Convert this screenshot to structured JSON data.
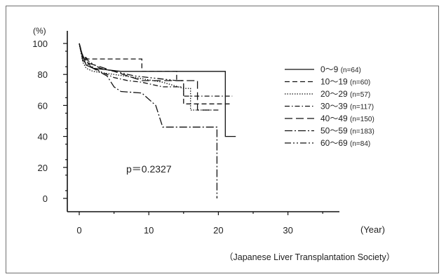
{
  "chart_data": {
    "type": "line",
    "title": "",
    "ylabel": "(%)",
    "xlabel": "(Year)",
    "xlim": [
      0,
      36
    ],
    "ylim": [
      0,
      105
    ],
    "xticks": [
      0,
      10,
      20,
      30
    ],
    "yticks": [
      0,
      20,
      40,
      60,
      80,
      100
    ],
    "grid": false,
    "legend_position": "right",
    "annotation": "p＝0.2327",
    "source": "（Japanese Liver Transplantation Society）",
    "series": [
      {
        "name": "0〜9",
        "n": "(n=64)",
        "dash": "",
        "points": [
          [
            0,
            100
          ],
          [
            0.3,
            94
          ],
          [
            1,
            86
          ],
          [
            2,
            84
          ],
          [
            6,
            82
          ],
          [
            21,
            82
          ],
          [
            21,
            40
          ],
          [
            22.5,
            40
          ]
        ]
      },
      {
        "name": "10〜19",
        "n": "(n=60)",
        "dash": "7,4",
        "points": [
          [
            0,
            100
          ],
          [
            0.4,
            93
          ],
          [
            1.2,
            90
          ],
          [
            9,
            90
          ],
          [
            9,
            82
          ],
          [
            14,
            82
          ],
          [
            14,
            76
          ],
          [
            15,
            76
          ],
          [
            15,
            61
          ],
          [
            22,
            61
          ]
        ]
      },
      {
        "name": "20〜29",
        "n": "(n=57)",
        "dash": "1.5,2",
        "points": [
          [
            0,
            100
          ],
          [
            0.5,
            88
          ],
          [
            1,
            84
          ],
          [
            2,
            82
          ],
          [
            5,
            80
          ],
          [
            8,
            78
          ],
          [
            12,
            75
          ],
          [
            15,
            71
          ],
          [
            16,
            71
          ],
          [
            16,
            57
          ],
          [
            19,
            57
          ]
        ]
      },
      {
        "name": "30〜39",
        "n": "(n=117)",
        "dash": "7,3,1.5,3",
        "points": [
          [
            0,
            100
          ],
          [
            0.5,
            92
          ],
          [
            1.5,
            86
          ],
          [
            3,
            82
          ],
          [
            5,
            78
          ],
          [
            7,
            76
          ],
          [
            9,
            75
          ],
          [
            12,
            72
          ],
          [
            15,
            72
          ],
          [
            15,
            66
          ],
          [
            22,
            66
          ]
        ]
      },
      {
        "name": "40〜49",
        "n": "(n=150)",
        "dash": "11,5",
        "points": [
          [
            0,
            100
          ],
          [
            0.5,
            91
          ],
          [
            1.5,
            87
          ],
          [
            3,
            85
          ],
          [
            5,
            82
          ],
          [
            7,
            79
          ],
          [
            9,
            76
          ],
          [
            14,
            76
          ],
          [
            17,
            76
          ],
          [
            17,
            57
          ],
          [
            20,
            57
          ]
        ]
      },
      {
        "name": "50〜59",
        "n": "(n=183)",
        "dash": "11,3,2,3",
        "points": [
          [
            0,
            100
          ],
          [
            0.5,
            89
          ],
          [
            2,
            84
          ],
          [
            4,
            79
          ],
          [
            5,
            72
          ],
          [
            6,
            69
          ],
          [
            9,
            68
          ],
          [
            11,
            60
          ],
          [
            12,
            46
          ],
          [
            19.8,
            46
          ],
          [
            19.8,
            0
          ]
        ]
      },
      {
        "name": "60〜69",
        "n": "(n=84)",
        "dash": "9,3,2,3,2,3",
        "points": [
          [
            0,
            100
          ],
          [
            0.5,
            92
          ],
          [
            1.5,
            88
          ],
          [
            3,
            84
          ],
          [
            5,
            82
          ],
          [
            8,
            79
          ],
          [
            10,
            78
          ],
          [
            14,
            76
          ],
          [
            15,
            76
          ]
        ]
      }
    ]
  }
}
